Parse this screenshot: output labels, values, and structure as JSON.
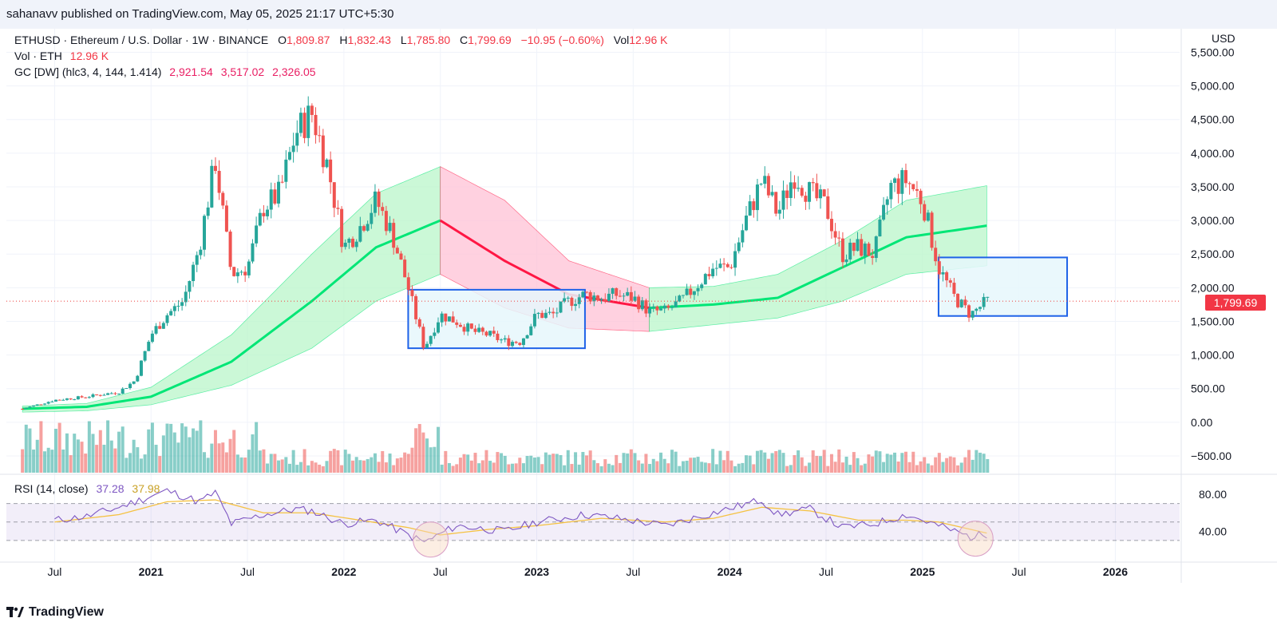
{
  "header": {
    "published": "sahanavv published on TradingView.com, May 05, 2025 21:17 UTC+5:30"
  },
  "legend": {
    "symbol": "ETHUSD · Ethereum / U.S. Dollar · 1W · BINANCE",
    "o_label": "O",
    "o_value": "1,809.87",
    "h_label": "H",
    "h_value": "1,832.43",
    "l_label": "L",
    "l_value": "1,785.80",
    "c_label": "C",
    "c_value": "1,799.69",
    "change": "−10.95 (−0.60%)",
    "vol_label": "Vol",
    "vol_value": "12.96 K",
    "vol_line_label": "Vol · ETH",
    "vol_line_value": "12.96 K",
    "gc_label": "GC [DW] (hlc3, 4, 144, 1.414)",
    "gc_values": [
      "2,921.54",
      "3,517.02",
      "2,326.05"
    ],
    "rsi_label": "RSI (14, close)",
    "rsi_value": "37.28",
    "rsi_ma_value": "37.98"
  },
  "currency_button": "USD",
  "last_price_tag": "1,799.69",
  "footer": {
    "brand": "TradingView"
  },
  "colors": {
    "up": "#26a69a",
    "down": "#ef5350",
    "rsi": "#7e57c2",
    "rsi_ma": "#f5c242",
    "gc_up": "#00e676",
    "gc_down": "#ff1744",
    "box_border": "#1e62e8",
    "box_fill": "#e6f7fb"
  },
  "chart_data": {
    "type": "candlestick",
    "price_axis": {
      "ticks": [
        "5,500.00",
        "5,000.00",
        "4,500.00",
        "4,000.00",
        "3,500.00",
        "3,000.00",
        "2,500.00",
        "2,000.00",
        "1,500.00",
        "1,000.00",
        "500.00",
        "0.00",
        "−500.00"
      ],
      "tick_values": [
        5500,
        5000,
        4500,
        4000,
        3500,
        3000,
        2500,
        2000,
        1500,
        1000,
        500,
        0,
        -500
      ],
      "range": [
        -750,
        5850
      ]
    },
    "rsi_axis": {
      "ticks": [
        "80.00",
        "40.00"
      ],
      "tick_values": [
        80,
        40
      ],
      "levels": [
        70,
        50,
        30
      ]
    },
    "time_axis": {
      "labels": [
        "Jul",
        "2021",
        "Jul",
        "2022",
        "Jul",
        "2023",
        "Jul",
        "2024",
        "Jul",
        "2025",
        "Jul",
        "2026"
      ],
      "dates": [
        "2020-07",
        "2021-01",
        "2021-07",
        "2022-01",
        "2022-07",
        "2023-01",
        "2023-07",
        "2024-01",
        "2024-07",
        "2025-01",
        "2025-07",
        "2026-01"
      ],
      "bold": [
        false,
        true,
        false,
        true,
        false,
        true,
        false,
        true,
        false,
        true,
        false,
        true
      ]
    },
    "price_path": [
      [
        "2020-05",
        200
      ],
      [
        "2020-07",
        330
      ],
      [
        "2020-09",
        380
      ],
      [
        "2020-11",
        450
      ],
      [
        "2020-12",
        620
      ],
      [
        "2021-01",
        1300
      ],
      [
        "2021-02",
        1600
      ],
      [
        "2021-03",
        1800
      ],
      [
        "2021-04",
        2600
      ],
      [
        "2021-05",
        3900
      ],
      [
        "2021-06",
        2200
      ],
      [
        "2021-07",
        2300
      ],
      [
        "2021-08",
        3200
      ],
      [
        "2021-09",
        3400
      ],
      [
        "2021-10",
        4300
      ],
      [
        "2021-11",
        4600
      ],
      [
        "2021-12",
        3800
      ],
      [
        "2022-01",
        2600
      ],
      [
        "2022-02",
        2900
      ],
      [
        "2022-03",
        3300
      ],
      [
        "2022-04",
        2800
      ],
      [
        "2022-05",
        2000
      ],
      [
        "2022-06",
        1100
      ],
      [
        "2022-07",
        1600
      ],
      [
        "2022-08",
        1500
      ],
      [
        "2022-09",
        1350
      ],
      [
        "2022-10",
        1300
      ],
      [
        "2022-11",
        1200
      ],
      [
        "2022-12",
        1200
      ],
      [
        "2023-01",
        1600
      ],
      [
        "2023-02",
        1600
      ],
      [
        "2023-03",
        1800
      ],
      [
        "2023-04",
        1900
      ],
      [
        "2023-05",
        1850
      ],
      [
        "2023-06",
        1900
      ],
      [
        "2023-07",
        1850
      ],
      [
        "2023-08",
        1650
      ],
      [
        "2023-09",
        1650
      ],
      [
        "2023-10",
        1800
      ],
      [
        "2023-11",
        2050
      ],
      [
        "2023-12",
        2300
      ],
      [
        "2024-01",
        2300
      ],
      [
        "2024-02",
        3000
      ],
      [
        "2024-03",
        3600
      ],
      [
        "2024-04",
        3100
      ],
      [
        "2024-05",
        3700
      ],
      [
        "2024-06",
        3400
      ],
      [
        "2024-07",
        3200
      ],
      [
        "2024-08",
        2500
      ],
      [
        "2024-09",
        2600
      ],
      [
        "2024-10",
        2500
      ],
      [
        "2024-11",
        3500
      ],
      [
        "2024-12",
        3600
      ],
      [
        "2025-01",
        3300
      ],
      [
        "2025-02",
        2300
      ],
      [
        "2025-03",
        1850
      ],
      [
        "2025-04",
        1600
      ],
      [
        "2025-05",
        1800
      ]
    ],
    "gc_basis": [
      [
        "2020-05",
        200
      ],
      [
        "2020-09",
        230
      ],
      [
        "2021-01",
        380
      ],
      [
        "2021-06",
        900
      ],
      [
        "2021-11",
        1800
      ],
      [
        "2022-03",
        2600
      ],
      [
        "2022-07",
        3000
      ],
      [
        "2022-11",
        2400
      ],
      [
        "2023-03",
        1900
      ],
      [
        "2023-08",
        1700
      ],
      [
        "2023-12",
        1750
      ],
      [
        "2024-04",
        1850
      ],
      [
        "2024-08",
        2300
      ],
      [
        "2024-12",
        2750
      ],
      [
        "2025-05",
        2922
      ]
    ],
    "gc_upper": [
      [
        "2020-05",
        240
      ],
      [
        "2020-09",
        280
      ],
      [
        "2021-01",
        520
      ],
      [
        "2021-06",
        1300
      ],
      [
        "2021-11",
        2500
      ],
      [
        "2022-03",
        3400
      ],
      [
        "2022-07",
        3800
      ],
      [
        "2022-11",
        3300
      ],
      [
        "2023-03",
        2400
      ],
      [
        "2023-08",
        2000
      ],
      [
        "2023-12",
        2020
      ],
      [
        "2024-04",
        2200
      ],
      [
        "2024-08",
        2700
      ],
      [
        "2024-12",
        3300
      ],
      [
        "2025-05",
        3517
      ]
    ],
    "gc_lower": [
      [
        "2020-05",
        150
      ],
      [
        "2020-09",
        170
      ],
      [
        "2021-01",
        260
      ],
      [
        "2021-06",
        550
      ],
      [
        "2021-11",
        1100
      ],
      [
        "2022-03",
        1800
      ],
      [
        "2022-07",
        2200
      ],
      [
        "2022-11",
        1700
      ],
      [
        "2023-03",
        1400
      ],
      [
        "2023-08",
        1350
      ],
      [
        "2023-12",
        1450
      ],
      [
        "2024-04",
        1550
      ],
      [
        "2024-08",
        1800
      ],
      [
        "2024-12",
        2200
      ],
      [
        "2025-05",
        2326
      ]
    ],
    "gc_down_span": [
      "2022-07",
      "2023-08"
    ],
    "boxes": [
      {
        "x": [
          "2022-05",
          "2023-04"
        ],
        "y": [
          1100,
          1970
        ]
      },
      {
        "x": [
          "2025-02",
          "2025-10"
        ],
        "y": [
          1580,
          2450
        ]
      }
    ],
    "last_price": 1799.69,
    "rsi_path": [
      [
        "2020-07",
        52
      ],
      [
        "2020-09",
        56
      ],
      [
        "2020-11",
        66
      ],
      [
        "2021-01",
        78
      ],
      [
        "2021-02",
        84
      ],
      [
        "2021-04",
        72
      ],
      [
        "2021-05",
        82
      ],
      [
        "2021-06",
        48
      ],
      [
        "2021-08",
        58
      ],
      [
        "2021-10",
        64
      ],
      [
        "2021-11",
        62
      ],
      [
        "2022-01",
        48
      ],
      [
        "2022-03",
        52
      ],
      [
        "2022-05",
        36
      ],
      [
        "2022-06",
        28
      ],
      [
        "2022-08",
        46
      ],
      [
        "2022-11",
        40
      ],
      [
        "2023-01",
        50
      ],
      [
        "2023-04",
        58
      ],
      [
        "2023-06",
        54
      ],
      [
        "2023-09",
        46
      ],
      [
        "2023-12",
        60
      ],
      [
        "2024-03",
        74
      ],
      [
        "2024-04",
        58
      ],
      [
        "2024-06",
        64
      ],
      [
        "2024-08",
        44
      ],
      [
        "2024-10",
        48
      ],
      [
        "2024-12",
        58
      ],
      [
        "2025-02",
        46
      ],
      [
        "2025-04",
        34
      ],
      [
        "2025-05",
        37
      ]
    ],
    "rsi_ma_path": [
      [
        "2020-07",
        50
      ],
      [
        "2020-11",
        58
      ],
      [
        "2021-02",
        72
      ],
      [
        "2021-05",
        74
      ],
      [
        "2021-08",
        60
      ],
      [
        "2021-11",
        60
      ],
      [
        "2022-02",
        52
      ],
      [
        "2022-05",
        44
      ],
      [
        "2022-07",
        36
      ],
      [
        "2022-10",
        42
      ],
      [
        "2023-01",
        46
      ],
      [
        "2023-05",
        54
      ],
      [
        "2023-09",
        50
      ],
      [
        "2023-12",
        54
      ],
      [
        "2024-03",
        66
      ],
      [
        "2024-06",
        62
      ],
      [
        "2024-09",
        52
      ],
      [
        "2024-12",
        52
      ],
      [
        "2025-02",
        50
      ],
      [
        "2025-05",
        38
      ]
    ]
  }
}
